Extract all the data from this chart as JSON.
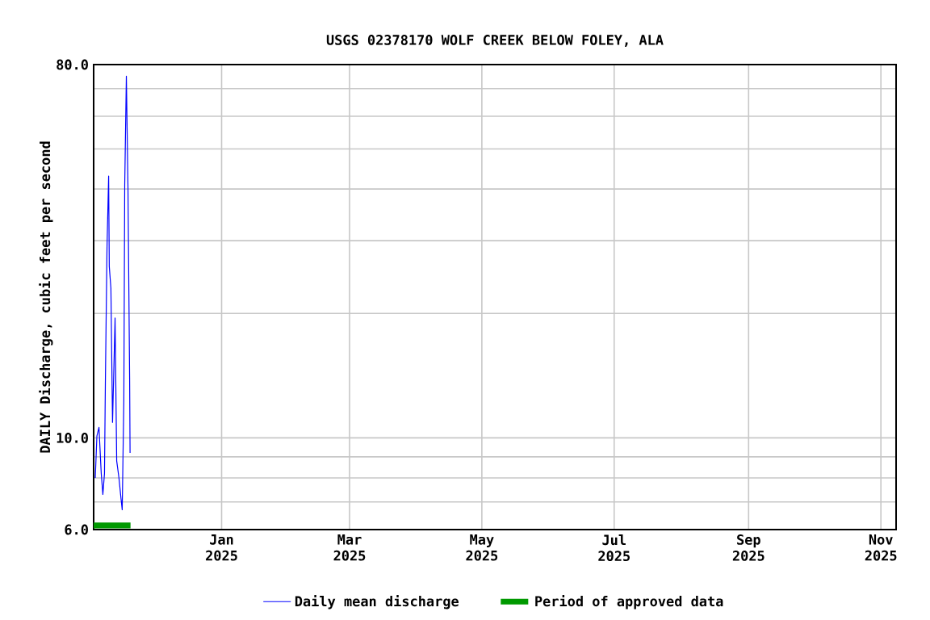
{
  "chart_data": {
    "type": "line",
    "title": "USGS 02378170 WOLF CREEK BELOW FOLEY, ALA",
    "ylabel": "DAILY Discharge, cubic feet per second",
    "log": "y",
    "grid": true,
    "legend": "bottom",
    "line_style": "solid",
    "xlim": [
      "2024-11-03",
      "2025-11-08"
    ],
    "xticks": [
      {
        "value": "2025-01-01",
        "label": "Jan 2025"
      },
      {
        "value": "2025-03-01",
        "label": "Mar 2025"
      },
      {
        "value": "2025-05-01",
        "label": "May 2025"
      },
      {
        "value": "2025-07-01",
        "label": "Jul 2025"
      },
      {
        "value": "2025-09-01",
        "label": "Sep 2025"
      },
      {
        "value": "2025-11-01",
        "label": "Nov 2025"
      }
    ],
    "ylim": [
      6,
      80
    ],
    "yticks": [
      {
        "value": 6,
        "label": "6.0"
      },
      {
        "value": 7,
        "label": null
      },
      {
        "value": 8,
        "label": null
      },
      {
        "value": 9,
        "label": null
      },
      {
        "value": 10,
        "label": "10.0"
      },
      {
        "value": 20,
        "label": null
      },
      {
        "value": 30,
        "label": null
      },
      {
        "value": 40,
        "label": null
      },
      {
        "value": 50,
        "label": null
      },
      {
        "value": 60,
        "label": null
      },
      {
        "value": 70,
        "label": null
      },
      {
        "value": 80,
        "label": "80.0"
      }
    ],
    "series": [
      {
        "name": "Daily mean discharge",
        "color": "#0000ff",
        "x": [
          "2024-11-03T18:00",
          "2024-11-04T12:00",
          "2024-11-05T11:00",
          "2024-11-06T12:00",
          "2024-11-07T06:00",
          "2024-11-08T00:00",
          "2024-11-08T10:00",
          "2024-11-09T04:00",
          "2024-11-09T22:00",
          "2024-11-10T05:00",
          "2024-11-10T23:00",
          "2024-11-11T17:00",
          "2024-11-12T04:00",
          "2024-11-12T21:00",
          "2024-11-13T15:00",
          "2024-11-14T16:00",
          "2024-11-15T10:00",
          "2024-11-16T04:00",
          "2024-11-16T22:00",
          "2024-11-17T08:00",
          "2024-11-18T02:00",
          "2024-11-18T20:00",
          "2024-11-19T14:00",
          "2024-11-19T19:00"
        ],
        "values": [
          8,
          10.1,
          10.6,
          8.2,
          7.3,
          8.2,
          13.8,
          29,
          43,
          26,
          23,
          10.9,
          13.6,
          19.5,
          8.8,
          8,
          7.3,
          6.7,
          12.3,
          41,
          75,
          40,
          14,
          9.2
        ]
      },
      {
        "name": "Period of approved data",
        "color": "#009900",
        "x": [
          "2024-11-03",
          "2024-11-20"
        ],
        "values": [
          6.14,
          6.14
        ]
      }
    ]
  }
}
